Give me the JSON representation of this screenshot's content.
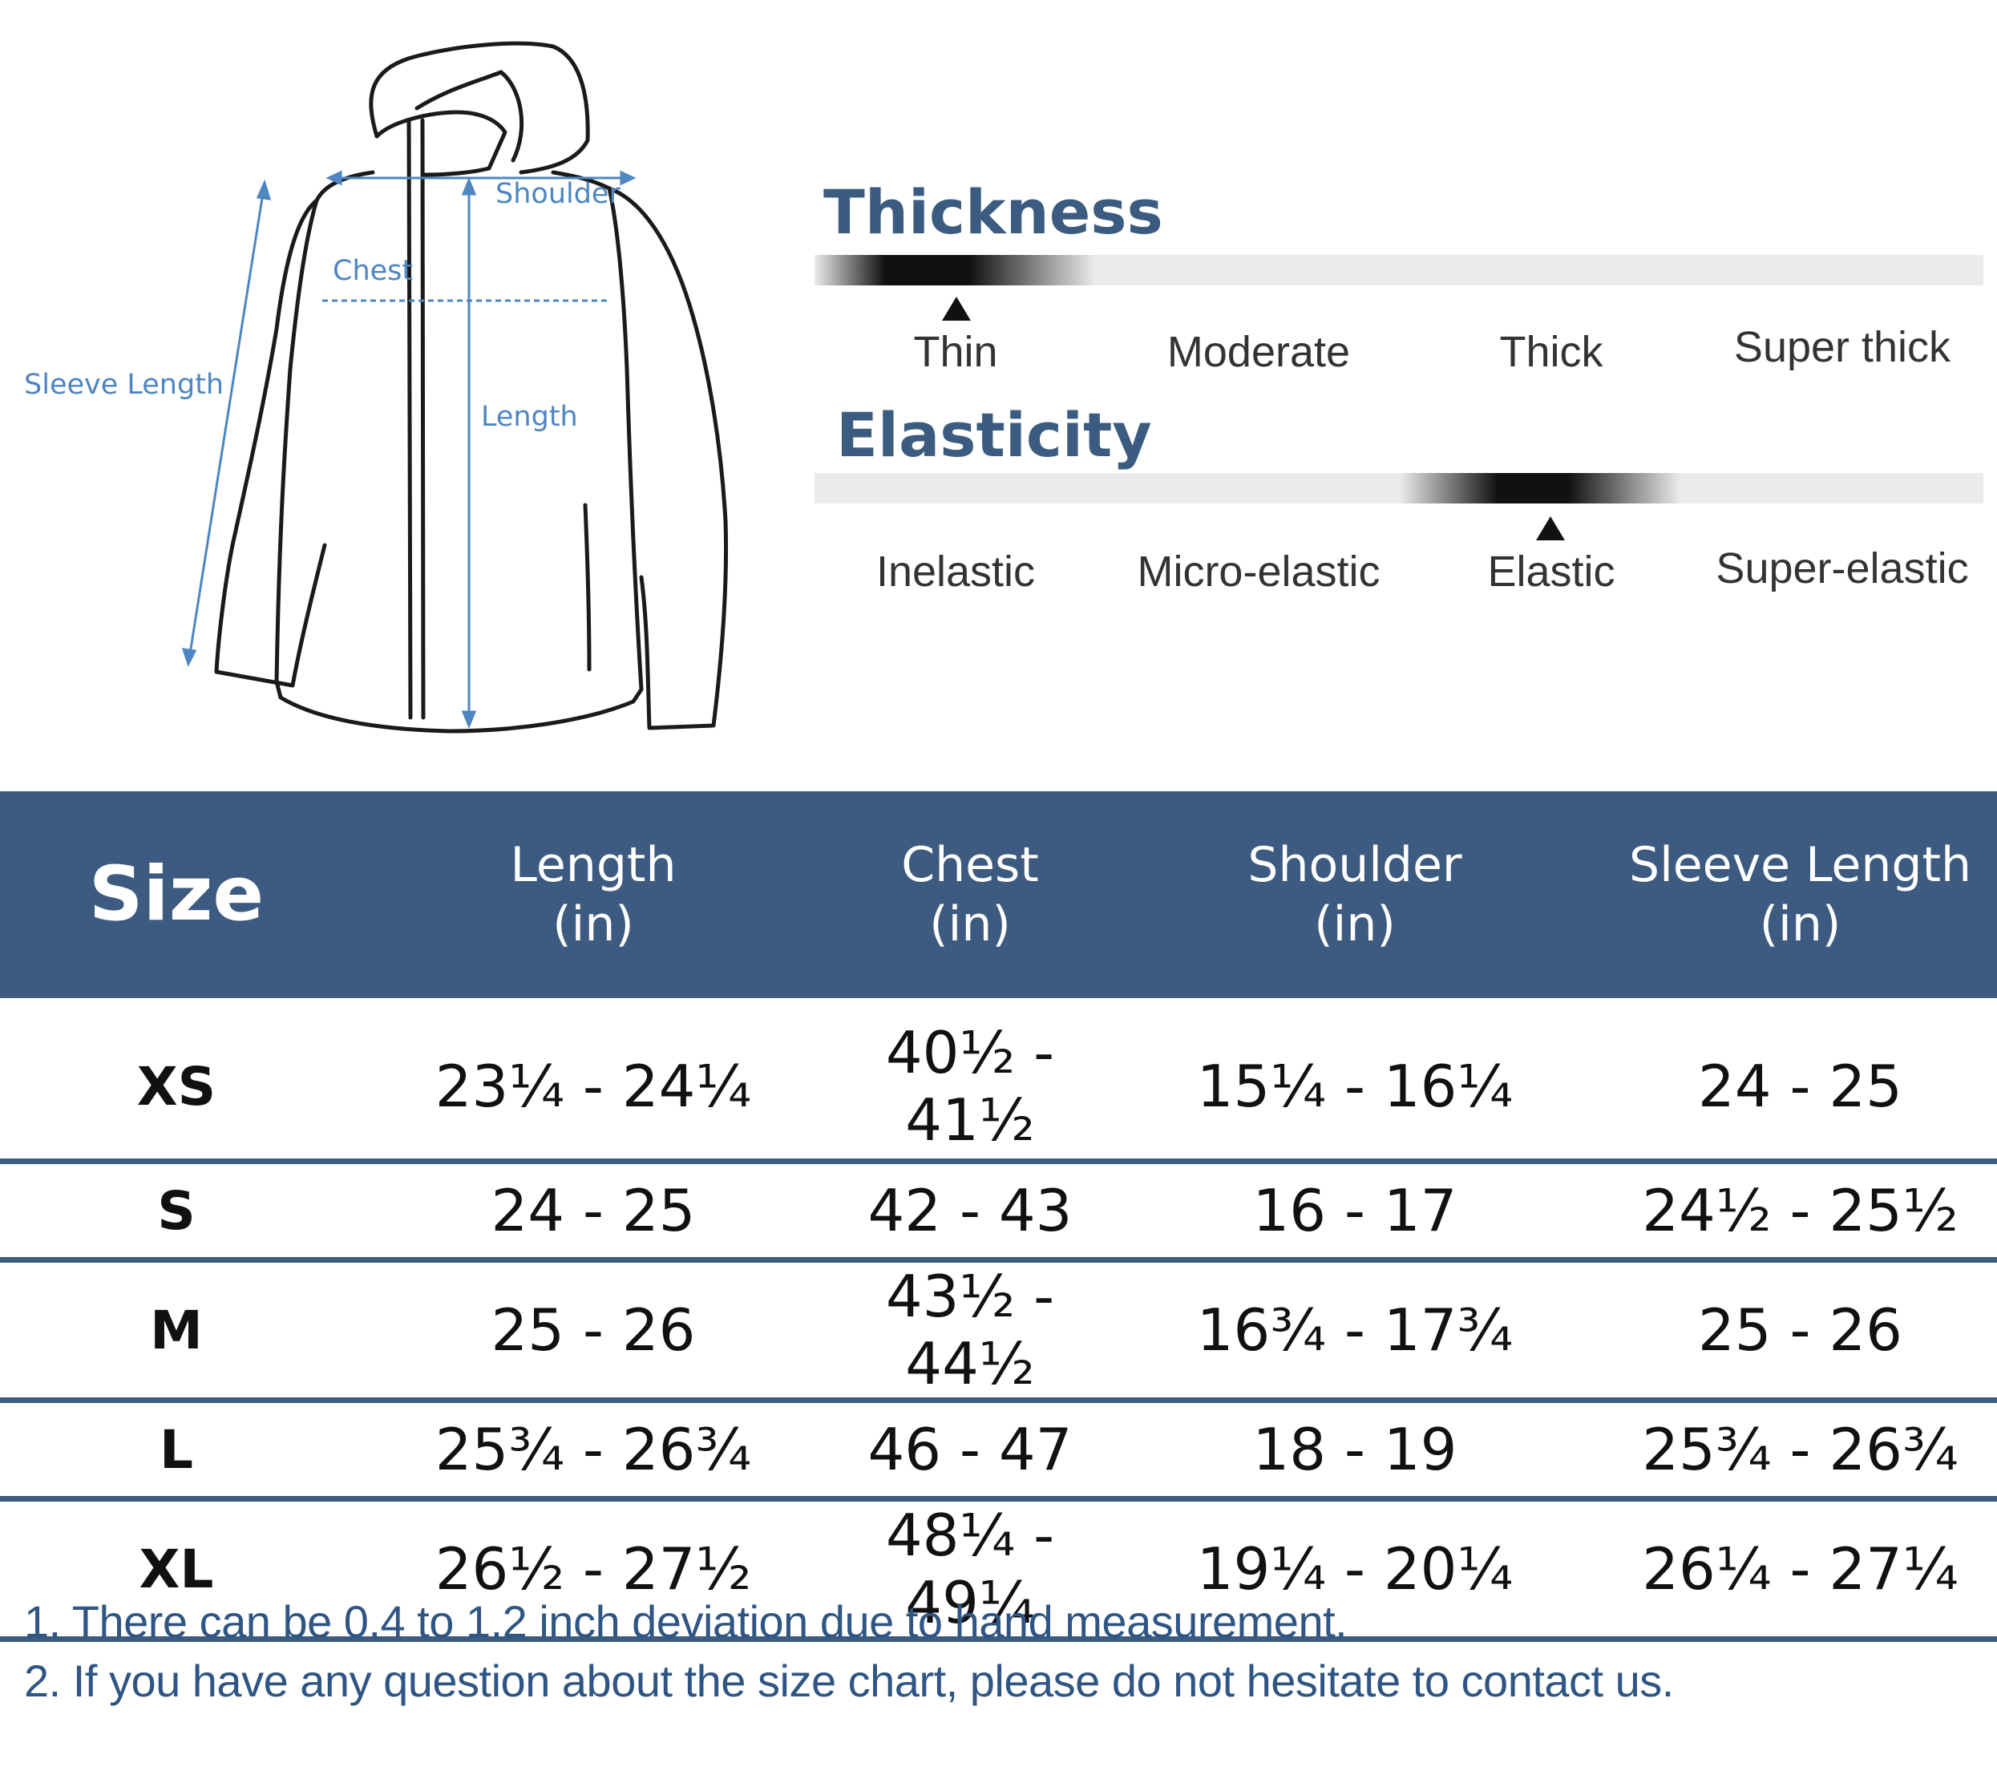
{
  "diagram": {
    "labels": {
      "shoulder": "Shoulder",
      "chest": "Chest",
      "sleeve_length": "Sleeve Length",
      "length": "Length"
    },
    "line_color": "#4d86c0"
  },
  "thickness": {
    "title": "Thickness",
    "options": [
      "Thin",
      "Moderate",
      "Thick",
      "Super thick"
    ],
    "selected_index": 0
  },
  "elasticity": {
    "title": "Elasticity",
    "options": [
      "Inelastic",
      "Micro-elastic",
      "Elastic",
      "Super-elastic"
    ],
    "selected_index": 2
  },
  "size_table": {
    "header": {
      "size": "Size",
      "columns": [
        {
          "name": "Length",
          "unit": "(in)"
        },
        {
          "name": "Chest",
          "unit": "(in)"
        },
        {
          "name": "Shoulder",
          "unit": "(in)"
        },
        {
          "name": "Sleeve Length",
          "unit": "(in)"
        }
      ]
    },
    "rows": [
      {
        "size": "XS",
        "length": "23¼ - 24¼",
        "chest": "40½ - 41½",
        "shoulder": "15¼ - 16¼",
        "sleeve": "24 - 25"
      },
      {
        "size": "S",
        "length": "24 - 25",
        "chest": "42 - 43",
        "shoulder": "16 - 17",
        "sleeve": "24½ - 25½"
      },
      {
        "size": "M",
        "length": "25 - 26",
        "chest": "43½ - 44½",
        "shoulder": "16¾ - 17¾",
        "sleeve": "25 - 26"
      },
      {
        "size": "L",
        "length": "25¾ - 26¾",
        "chest": "46 - 47",
        "shoulder": "18 - 19",
        "sleeve": "25¾ - 26¾"
      },
      {
        "size": "XL",
        "length": "26½ - 27½",
        "chest": "48¼ - 49¼",
        "shoulder": "19¼ - 20¼",
        "sleeve": "26¼ - 27¼"
      }
    ],
    "header_color": "#3d5a80"
  },
  "notes": [
    "1. There can be 0.4 to 1.2 inch deviation due to hand measurement.",
    "2. If you have any question about the size chart, please do not hesitate to contact us."
  ]
}
